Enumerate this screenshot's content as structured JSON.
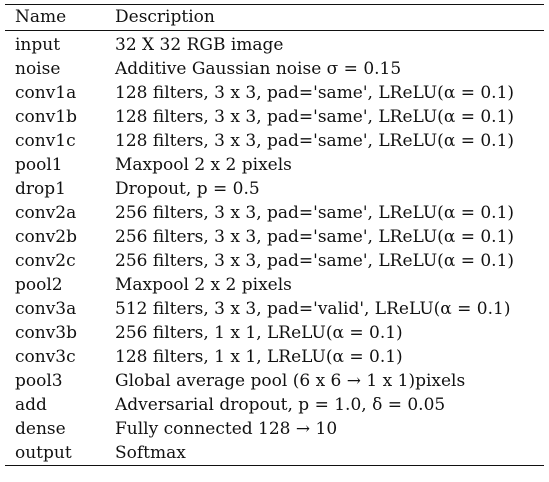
{
  "table": {
    "headers": [
      "Name",
      "Description"
    ],
    "rows": [
      {
        "name": "input",
        "description": "32 X 32 RGB image"
      },
      {
        "name": "noise",
        "description": "Additive Gaussian noise σ = 0.15"
      },
      {
        "name": "conv1a",
        "description": "128 filters, 3 x 3, pad='same', LReLU(α = 0.1)"
      },
      {
        "name": "conv1b",
        "description": "128 filters, 3 x 3, pad='same', LReLU(α = 0.1)"
      },
      {
        "name": "conv1c",
        "description": "128 filters, 3 x 3, pad='same', LReLU(α = 0.1)"
      },
      {
        "name": "pool1",
        "description": "Maxpool 2 x 2 pixels"
      },
      {
        "name": "drop1",
        "description": "Dropout, p = 0.5"
      },
      {
        "name": "conv2a",
        "description": "256 filters, 3 x 3, pad='same', LReLU(α = 0.1)"
      },
      {
        "name": "conv2b",
        "description": "256 filters, 3 x 3, pad='same', LReLU(α = 0.1)"
      },
      {
        "name": "conv2c",
        "description": "256 filters, 3 x 3, pad='same', LReLU(α = 0.1)"
      },
      {
        "name": "pool2",
        "description": "Maxpool 2 x 2 pixels"
      },
      {
        "name": "conv3a",
        "description": "512 filters, 3 x 3, pad='valid', LReLU(α = 0.1)"
      },
      {
        "name": "conv3b",
        "description": "256 filters, 1 x 1, LReLU(α = 0.1)"
      },
      {
        "name": "conv3c",
        "description": "128 filters, 1 x 1, LReLU(α = 0.1)"
      },
      {
        "name": "pool3",
        "description": "Global average pool (6 x 6 → 1 x 1)pixels"
      },
      {
        "name": "add",
        "description": "Adversarial dropout, p = 1.0, δ = 0.05"
      },
      {
        "name": "dense",
        "description": "Fully connected 128 → 10"
      },
      {
        "name": "output",
        "description": "Softmax"
      }
    ]
  }
}
